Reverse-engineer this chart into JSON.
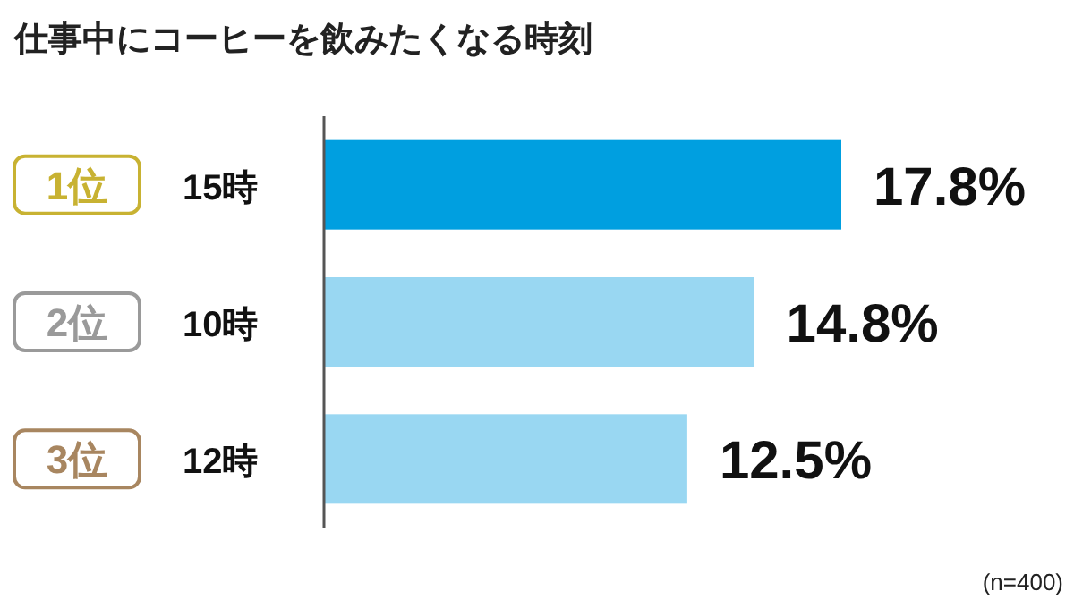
{
  "chart_data": {
    "type": "bar",
    "orientation": "horizontal",
    "title": "仕事中にコーヒーを飲みたくなる時刻",
    "categories": [
      "15時",
      "10時",
      "12時"
    ],
    "values": [
      17.8,
      14.8,
      12.5
    ],
    "colors": [
      "#009fe0",
      "#99d7f2",
      "#99d7f2"
    ],
    "value_labels": [
      "17.8%",
      "14.8%",
      "12.5%"
    ],
    "annotations": [
      "1位",
      "2位",
      "3位",
      "(n=400)"
    ]
  }
}
